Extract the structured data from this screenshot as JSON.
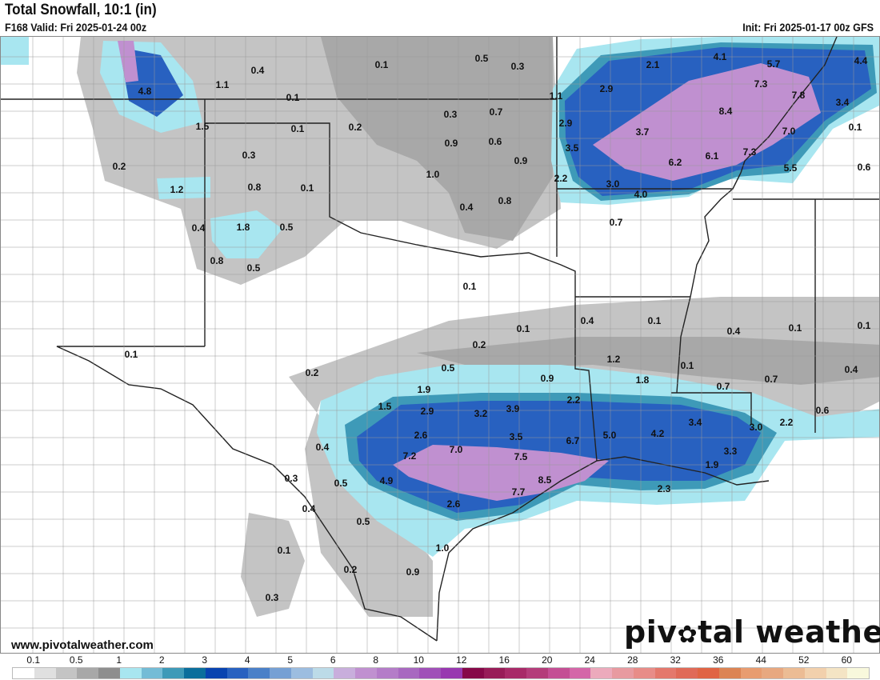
{
  "header": {
    "title": "Total Snowfall, 10:1 (in)",
    "valid": "F168 Valid: Fri 2025-01-24 00z",
    "init": "Init: Fri 2025-01-17 00z GFS"
  },
  "footer": {
    "website": "www.pivotalweather.com",
    "logo": "pivotal weather"
  },
  "legend": {
    "labels": [
      "0.1",
      "0.5",
      "1",
      "2",
      "3",
      "4",
      "5",
      "6",
      "8",
      "10",
      "12",
      "16",
      "20",
      "24",
      "28",
      "32",
      "36",
      "44",
      "52",
      "60"
    ],
    "colors": [
      "#ffffff",
      "#e0e0e0",
      "#c4c4c4",
      "#a8a8a8",
      "#8e8e8e",
      "#a8e6f0",
      "#74bcd6",
      "#3e9ab8",
      "#0b6e9c",
      "#0843b0",
      "#2861c0",
      "#4a80c8",
      "#76a0d4",
      "#9cbde0",
      "#bcdbe8",
      "#c8aedc",
      "#c090d0",
      "#b47cc8",
      "#a868c0",
      "#a050b8",
      "#9838b0",
      "#860848",
      "#981c58",
      "#a82a68",
      "#b43c7a",
      "#c44e94",
      "#d466a8",
      "#ecaabc",
      "#e89aa0",
      "#e88c88",
      "#e4786c",
      "#e06a58",
      "#e06444",
      "#dc8454",
      "#e89c70",
      "#e8a880",
      "#ecbc94",
      "#f2d0ac",
      "#f4e4c4",
      "#f8f8dc"
    ]
  },
  "map": {
    "labels": [
      "0.4",
      "0.1",
      "0.5",
      "0.3",
      "2.1",
      "4.1",
      "5.7",
      "4.4",
      "4.8",
      "1.1",
      "0.1",
      "1.1",
      "2.9",
      "7.3",
      "7.8",
      "3.4",
      "1.5",
      "0.1",
      "0.2",
      "0.3",
      "0.7",
      "2.9",
      "3.7",
      "8.4",
      "7.0",
      "0.1",
      "0.3",
      "0.9",
      "0.6",
      "3.5",
      "6.1",
      "7.3",
      "0.2",
      "0.9",
      "6.2",
      "5.5",
      "0.6",
      "1.0",
      "1.2",
      "0.8",
      "0.1",
      "2.2",
      "3.0",
      "4.0",
      "0.4",
      "0.8",
      "0.7",
      "0.4",
      "1.8",
      "0.5",
      "0.8",
      "0.5",
      "0.1",
      "0.1",
      "0.4",
      "0.1",
      "0.4",
      "0.1",
      "0.1",
      "0.1",
      "0.2",
      "1.2",
      "0.1",
      "0.5",
      "0.2",
      "0.9",
      "1.8",
      "0.7",
      "0.7",
      "0.4",
      "1.9",
      "2.2",
      "1.5",
      "2.9",
      "3.2",
      "3.9",
      "3.4",
      "2.2",
      "0.6",
      "2.6",
      "3.5",
      "6.7",
      "5.0",
      "4.2",
      "3.0",
      "3.3",
      "0.4",
      "7.2",
      "7.0",
      "7.5",
      "4.9",
      "0.3",
      "0.5",
      "8.5",
      "1.9",
      "7.7",
      "2.3",
      "0.4",
      "2.6",
      "0.5",
      "0.1",
      "1.0",
      "0.2",
      "0.9",
      "0.3"
    ]
  }
}
